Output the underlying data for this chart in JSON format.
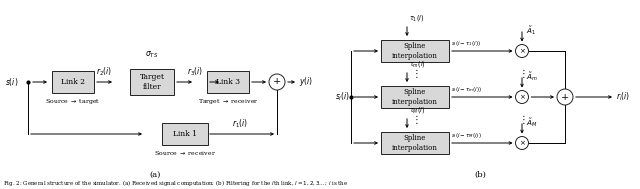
{
  "fig_width": 6.4,
  "fig_height": 1.89,
  "dpi": 100,
  "bg": "#ffffff",
  "lw": 0.7,
  "fs": 5.5,
  "fs_small": 4.8,
  "box_fc": "#d8d8d8",
  "box_ec": "#222222",
  "label_a": "(a)",
  "label_b": "(b)",
  "caption": "Fig. 2: General structure of the simulator. (a) Received signal computation; (b) Filtering for the lth link, l = 1, 2, 3 ...; i is the"
}
